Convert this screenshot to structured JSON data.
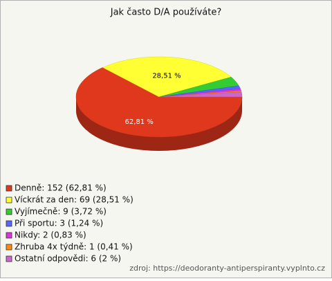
{
  "chart_data": {
    "type": "pie",
    "title": "Jak často D/A používáte?",
    "categories": [
      "Denně: 152 (62,81 %)",
      "Víckrát za den: 69 (28,51 %)",
      "Vyjímečně: 9 (3,72 %)",
      "Při sportu: 3 (1,24 %)",
      "Nikdy: 2 (0,83 %)",
      "Zhruba 4x týdně: 1 (0,41 %)",
      "Ostatní odpovědi: 6 (2 %)"
    ],
    "values": [
      62.81,
      28.51,
      3.72,
      1.24,
      0.83,
      0.41,
      2
    ],
    "value_labels": [
      "62,81 %",
      "28,51 %",
      null,
      null,
      null,
      null,
      null
    ],
    "colors": [
      "#e0381c",
      "#ffff33",
      "#33cc33",
      "#5566ff",
      "#dd33dd",
      "#ff8811",
      "#cc66cc"
    ],
    "source": "zdroj: https://deodoranty-antiperspiranty.vyplnto.cz"
  }
}
